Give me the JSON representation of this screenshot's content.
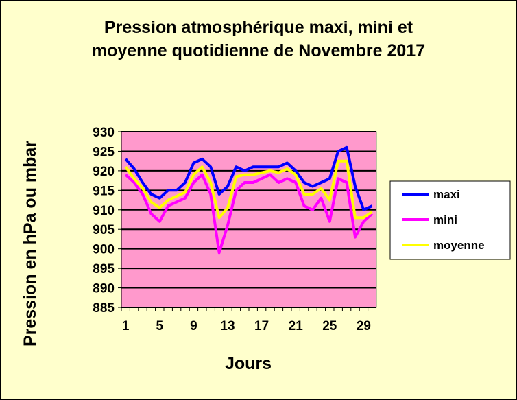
{
  "chart_data": {
    "type": "line",
    "title_line1": "Pression atmosphérique maxi, mini et",
    "title_line2": "moyenne quotidienne de Novembre 2017",
    "xlabel": "Jours",
    "ylabel": "Pression en hPa ou mbar",
    "ylim": [
      885,
      930
    ],
    "yticks": [
      885,
      890,
      895,
      900,
      905,
      910,
      915,
      920,
      925,
      930
    ],
    "xticks": [
      1,
      5,
      9,
      13,
      17,
      21,
      25,
      29
    ],
    "grid": true,
    "legend_position": "right",
    "x": [
      1,
      2,
      3,
      4,
      5,
      6,
      7,
      8,
      9,
      10,
      11,
      12,
      13,
      14,
      15,
      16,
      17,
      18,
      19,
      20,
      21,
      22,
      23,
      24,
      25,
      26,
      27,
      28,
      29,
      30
    ],
    "series": [
      {
        "name": "maxi",
        "color": "#0000ff",
        "values": [
          923,
          920.5,
          917,
          914,
          913,
          915,
          915,
          917,
          922,
          923,
          921,
          914,
          916,
          921,
          920,
          921,
          921,
          921,
          921,
          922,
          920,
          917,
          916,
          917,
          918,
          925,
          926,
          916,
          910,
          911
        ]
      },
      {
        "name": "mini",
        "color": "#ff00ff",
        "values": [
          919,
          917,
          914,
          909,
          907,
          911,
          912,
          913,
          917,
          919,
          914,
          899,
          906,
          915,
          917,
          917,
          918,
          919,
          917,
          918,
          917,
          911,
          910,
          913,
          907,
          918,
          917,
          903,
          907,
          909
        ]
      },
      {
        "name": "moyenne",
        "color": "#ffff00",
        "values": [
          921,
          918,
          915.5,
          912,
          910.5,
          912.5,
          913.5,
          914.5,
          919,
          921,
          917,
          908,
          910.5,
          918.5,
          919,
          919,
          919.5,
          920,
          919.5,
          920.5,
          919,
          914,
          914,
          915.5,
          912.5,
          922.5,
          922.5,
          908,
          908,
          909.5
        ]
      }
    ]
  }
}
